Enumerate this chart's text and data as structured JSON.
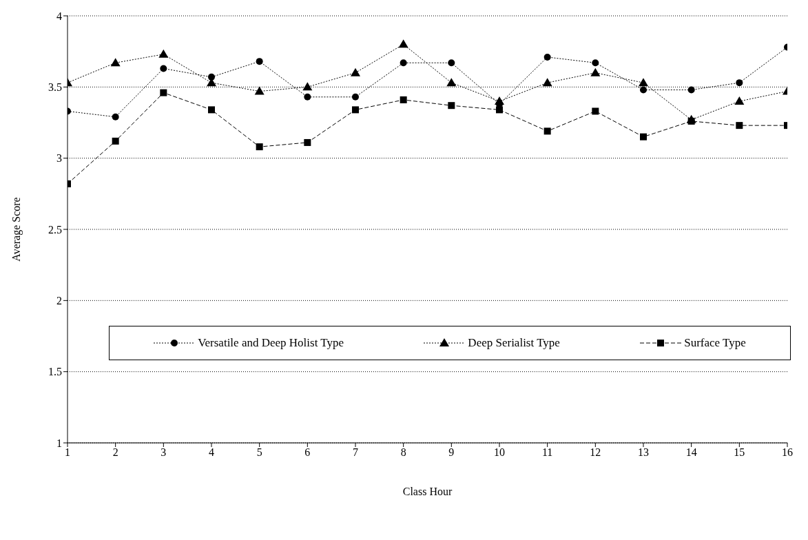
{
  "chart_data": {
    "type": "line",
    "xlabel": "Class Hour",
    "ylabel": "Average Score",
    "x": [
      1,
      2,
      3,
      4,
      5,
      6,
      7,
      8,
      9,
      10,
      11,
      12,
      13,
      14,
      15,
      16
    ],
    "xlim": [
      1,
      16
    ],
    "xticks": [
      1,
      2,
      3,
      4,
      5,
      6,
      7,
      8,
      9,
      10,
      11,
      12,
      13,
      14,
      15,
      16
    ],
    "ylim": [
      1,
      4
    ],
    "yticks": [
      1,
      1.5,
      2,
      2.5,
      3,
      3.5,
      4
    ],
    "grid": "y",
    "legend": "bottom",
    "series": [
      {
        "name": "Versatile and Deep Holist Type",
        "color": "#000000",
        "marker": "circle",
        "line_style": "dotted",
        "values": [
          3.33,
          3.29,
          3.63,
          3.57,
          3.68,
          3.43,
          3.43,
          3.67,
          3.67,
          3.38,
          3.71,
          3.67,
          3.48,
          3.48,
          3.53,
          3.78
        ]
      },
      {
        "name": "Deep Serialist Type",
        "color": "#000000",
        "marker": "triangle",
        "line_style": "dotted",
        "values": [
          3.53,
          3.67,
          3.73,
          3.53,
          3.47,
          3.5,
          3.6,
          3.8,
          3.53,
          3.4,
          3.53,
          3.6,
          3.53,
          3.27,
          3.4,
          3.47
        ]
      },
      {
        "name": "Surface Type",
        "color": "#000000",
        "marker": "square",
        "line_style": "dashed",
        "values": [
          2.82,
          3.12,
          3.46,
          3.34,
          3.08,
          3.11,
          3.34,
          3.41,
          3.37,
          3.34,
          3.19,
          3.33,
          3.15,
          3.26,
          3.23,
          3.23
        ]
      }
    ]
  }
}
